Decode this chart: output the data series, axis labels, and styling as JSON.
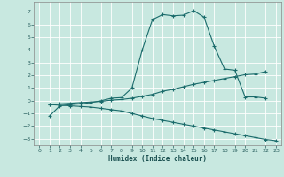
{
  "xlabel": "Humidex (Indice chaleur)",
  "bg_color": "#c8e8e0",
  "line_color": "#1a6b6b",
  "xlim": [
    -0.5,
    23.5
  ],
  "ylim": [
    -3.5,
    7.8
  ],
  "yticks": [
    -3,
    -2,
    -1,
    0,
    1,
    2,
    3,
    4,
    5,
    6,
    7
  ],
  "xticks": [
    0,
    1,
    2,
    3,
    4,
    5,
    6,
    7,
    8,
    9,
    10,
    11,
    12,
    13,
    14,
    15,
    16,
    17,
    18,
    19,
    20,
    21,
    22,
    23
  ],
  "curve1_x": [
    1,
    2,
    3,
    4,
    5,
    6,
    7,
    8,
    9,
    10,
    11,
    12,
    13,
    14,
    15,
    16,
    17,
    18,
    19,
    20,
    21,
    22
  ],
  "curve1_y": [
    -1.2,
    -0.4,
    -0.3,
    -0.25,
    -0.15,
    0.0,
    0.2,
    0.25,
    1.0,
    4.0,
    6.4,
    6.8,
    6.7,
    6.75,
    7.1,
    6.6,
    4.3,
    2.5,
    2.4,
    0.3,
    0.3,
    0.2
  ],
  "curve2_x": [
    1,
    2,
    3,
    4,
    5,
    6,
    7,
    8,
    9,
    10,
    11,
    12,
    13,
    14,
    15,
    16,
    17,
    18,
    19,
    20,
    21,
    22
  ],
  "curve2_y": [
    -0.3,
    -0.25,
    -0.2,
    -0.15,
    -0.1,
    -0.05,
    0.05,
    0.1,
    0.2,
    0.35,
    0.5,
    0.75,
    0.9,
    1.1,
    1.3,
    1.45,
    1.6,
    1.75,
    1.9,
    2.05,
    2.1,
    2.3
  ],
  "curve3_x": [
    1,
    2,
    3,
    4,
    5,
    6,
    7,
    8,
    9,
    10,
    11,
    12,
    13,
    14,
    15,
    16,
    17,
    18,
    19,
    20,
    21,
    22,
    23
  ],
  "curve3_y": [
    -0.3,
    -0.35,
    -0.4,
    -0.45,
    -0.5,
    -0.6,
    -0.7,
    -0.8,
    -1.0,
    -1.2,
    -1.4,
    -1.55,
    -1.7,
    -1.85,
    -2.0,
    -2.15,
    -2.3,
    -2.45,
    -2.6,
    -2.75,
    -2.9,
    -3.05,
    -3.15
  ]
}
